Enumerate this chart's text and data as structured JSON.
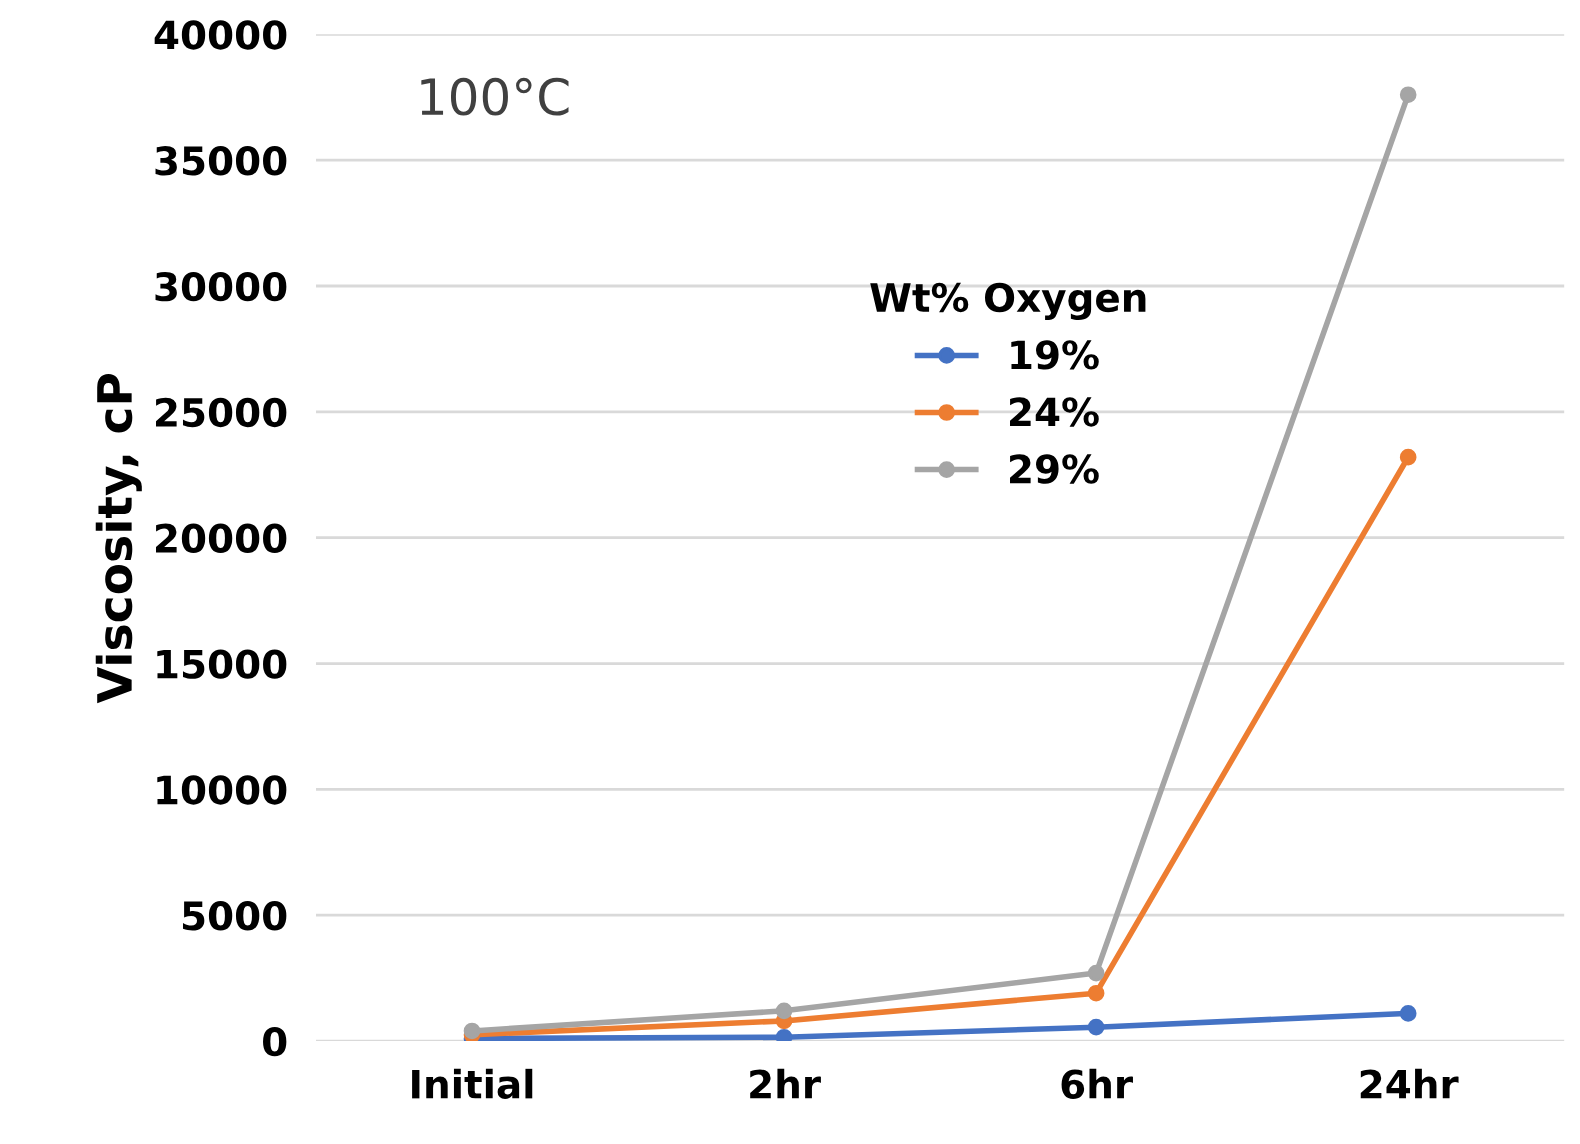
{
  "chart_data": {
    "type": "line",
    "ylabel": "Viscosity, cP",
    "legend_title": "Wt% Oxygen",
    "categories": [
      "Initial",
      "2hr",
      "6hr",
      "24hr"
    ],
    "series": [
      {
        "name": "19%",
        "color": "#4472c4",
        "values": [
          100,
          150,
          550,
          1100
        ]
      },
      {
        "name": "24%",
        "color": "#ed7d31",
        "values": [
          250,
          800,
          1900,
          23200
        ]
      },
      {
        "name": "29%",
        "color": "#a5a5a5",
        "values": [
          400,
          1200,
          2700,
          37600
        ]
      }
    ],
    "annotations": [
      "100°C"
    ],
    "ylim": [
      0,
      40000
    ],
    "yticks": [
      0,
      5000,
      10000,
      15000,
      20000,
      25000,
      30000,
      35000,
      40000
    ],
    "grid": "y",
    "legend": "center",
    "marker": "circle",
    "line_style": "solid"
  }
}
